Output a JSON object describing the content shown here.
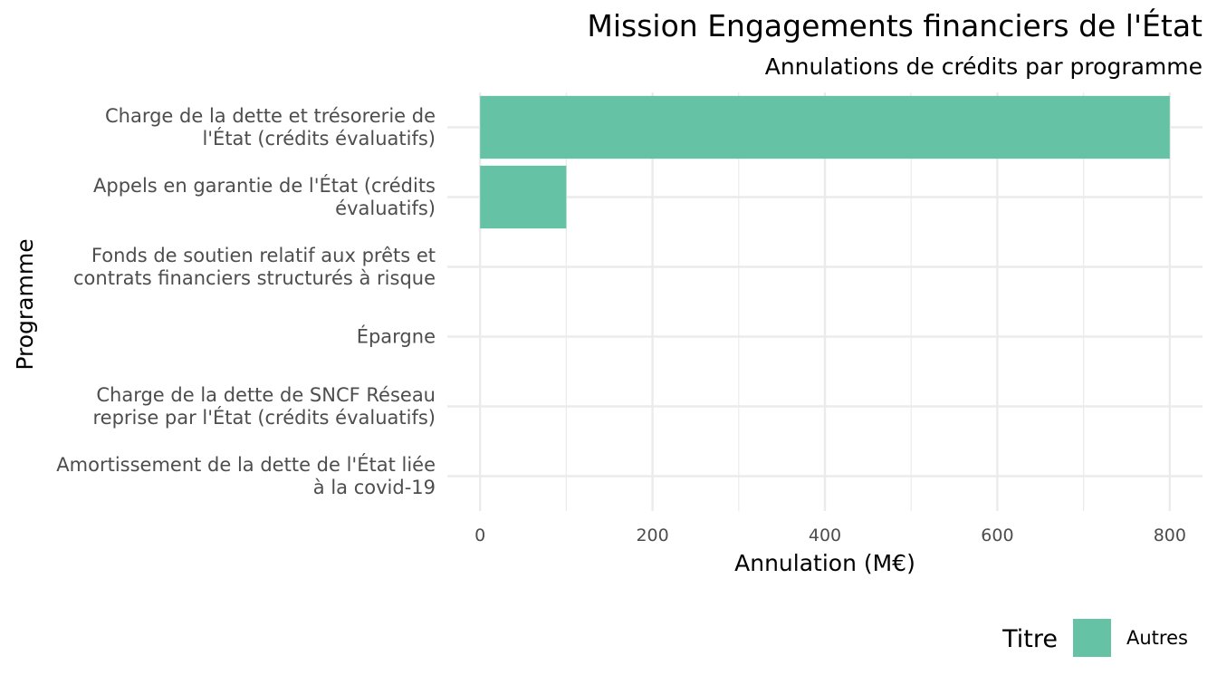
{
  "chart_data": {
    "type": "bar",
    "orientation": "horizontal",
    "title": "Mission Engagements financiers de l'État",
    "subtitle": "Annulations de crédits par programme",
    "xlabel": "Annulation (M€)",
    "ylabel": "Programme",
    "categories": [
      [
        "Charge de la dette et trésorerie de",
        "l'État (crédits évaluatifs)"
      ],
      [
        "Appels en garantie de l'État (crédits",
        "évaluatifs)"
      ],
      [
        "Fonds de soutien relatif aux prêts et",
        "contrats financiers structurés à risque"
      ],
      [
        "Épargne"
      ],
      [
        "Charge de la dette de SNCF Réseau",
        "reprise par l'État (crédits évaluatifs)"
      ],
      [
        "Amortissement de la dette de l'État liée",
        "à la covid-19"
      ]
    ],
    "series": [
      {
        "name": "Autres",
        "color": "#66c2a5",
        "values": [
          800,
          100,
          0,
          0,
          0,
          0
        ]
      }
    ],
    "xlim": [
      -38,
      838
    ],
    "xticks": [
      0,
      200,
      400,
      600,
      800
    ],
    "grid": true,
    "legend": {
      "title": "Titre",
      "position": "bottom-right"
    }
  }
}
